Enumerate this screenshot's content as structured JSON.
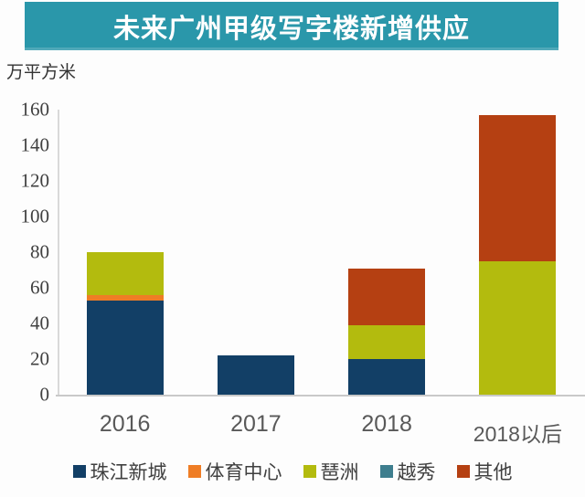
{
  "header": {
    "title": "未来广州甲级写字楼新增供应",
    "banner_color": "#2a97aa",
    "title_color": "#ffffff"
  },
  "chart_data": {
    "type": "bar",
    "stacked": true,
    "title": "未来广州甲级写字楼新增供应",
    "ylabel_unit": "万平方米",
    "xlabel": "",
    "categories": [
      "2016",
      "2017",
      "2018",
      "2018以后"
    ],
    "series": [
      {
        "name": "珠江新城",
        "color": "#123f66",
        "values": [
          53,
          22,
          20,
          0
        ]
      },
      {
        "name": "体育中心",
        "color": "#ef7d25",
        "values": [
          3,
          0,
          0,
          0
        ]
      },
      {
        "name": "琶洲",
        "color": "#b3bb0e",
        "values": [
          24,
          0,
          19,
          75
        ]
      },
      {
        "name": "越秀",
        "color": "#3e7e8e",
        "values": [
          0,
          0,
          0,
          0
        ]
      },
      {
        "name": "其他",
        "color": "#b54012",
        "values": [
          0,
          0,
          32,
          82
        ]
      }
    ],
    "totals": [
      80,
      22,
      71,
      157
    ],
    "ylim": [
      0,
      160
    ],
    "yticks": [
      0,
      20,
      40,
      60,
      80,
      100,
      120,
      140,
      160
    ],
    "grid": false,
    "legend_position": "bottom"
  }
}
